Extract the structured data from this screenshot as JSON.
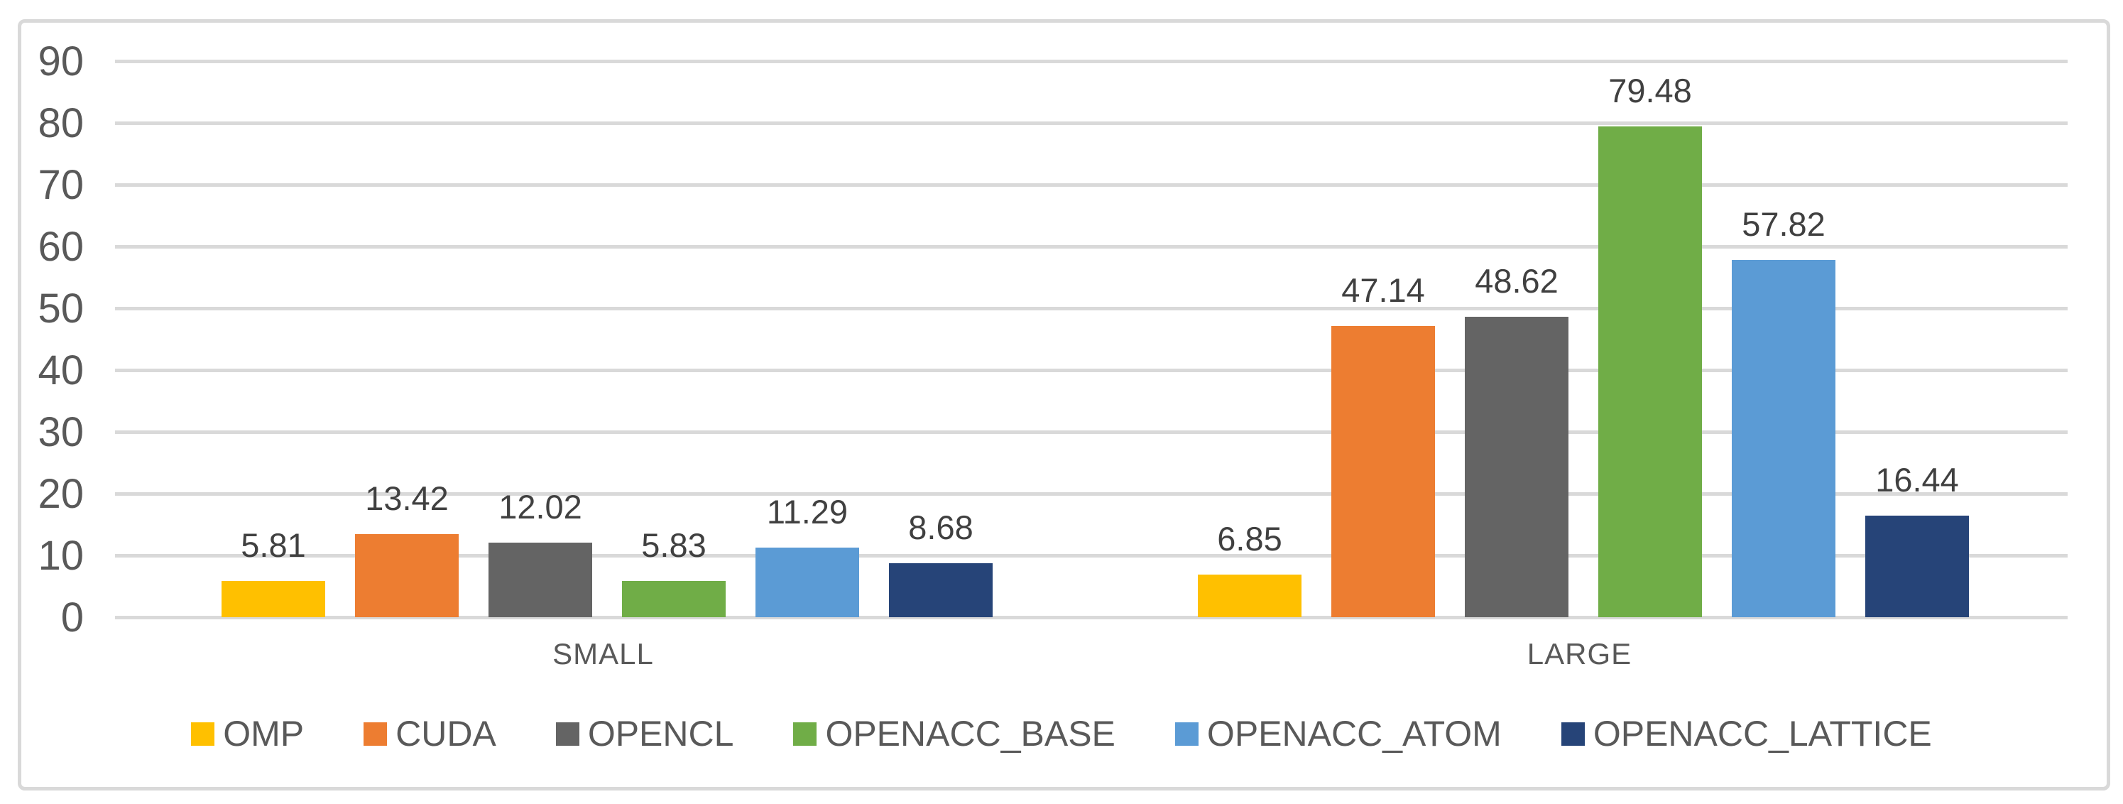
{
  "chart_data": {
    "type": "bar",
    "title": "",
    "xlabel": "",
    "ylabel": "",
    "categories": [
      "SMALL",
      "LARGE"
    ],
    "series": [
      {
        "name": "OMP",
        "color": "#FFC000",
        "values": [
          5.81,
          6.85
        ]
      },
      {
        "name": "CUDA",
        "color": "#ED7D31",
        "values": [
          13.42,
          47.14
        ]
      },
      {
        "name": "OPENCL",
        "color": "#646464",
        "values": [
          12.02,
          48.62
        ]
      },
      {
        "name": "OPENACC_BASE",
        "color": "#70AD47",
        "values": [
          5.83,
          79.48
        ]
      },
      {
        "name": "OPENACC_ATOM",
        "color": "#5B9BD5",
        "values": [
          11.29,
          57.82
        ]
      },
      {
        "name": "OPENACC_LATTICE",
        "color": "#264478",
        "values": [
          8.68,
          16.44
        ]
      }
    ],
    "value_labels": [
      [
        "5.81",
        "6.85"
      ],
      [
        "13.42",
        "47.14"
      ],
      [
        "12.02",
        "48.62"
      ],
      [
        "5.83",
        "79.48"
      ],
      [
        "11.29",
        "57.82"
      ],
      [
        "8.68",
        "16.44"
      ]
    ],
    "ylim": [
      0,
      90
    ],
    "y_step": 10,
    "y_ticks": [
      "0",
      "10",
      "20",
      "30",
      "40",
      "50",
      "60",
      "70",
      "80",
      "90"
    ],
    "grid": true,
    "legend_position": "bottom",
    "colors": {
      "gridline": "#d9d9d9",
      "frame_border": "#d9d9d9",
      "tick_text": "#595959",
      "value_text": "#404040",
      "category_text": "#595959",
      "legend_text": "#595959",
      "background": "#ffffff"
    }
  }
}
